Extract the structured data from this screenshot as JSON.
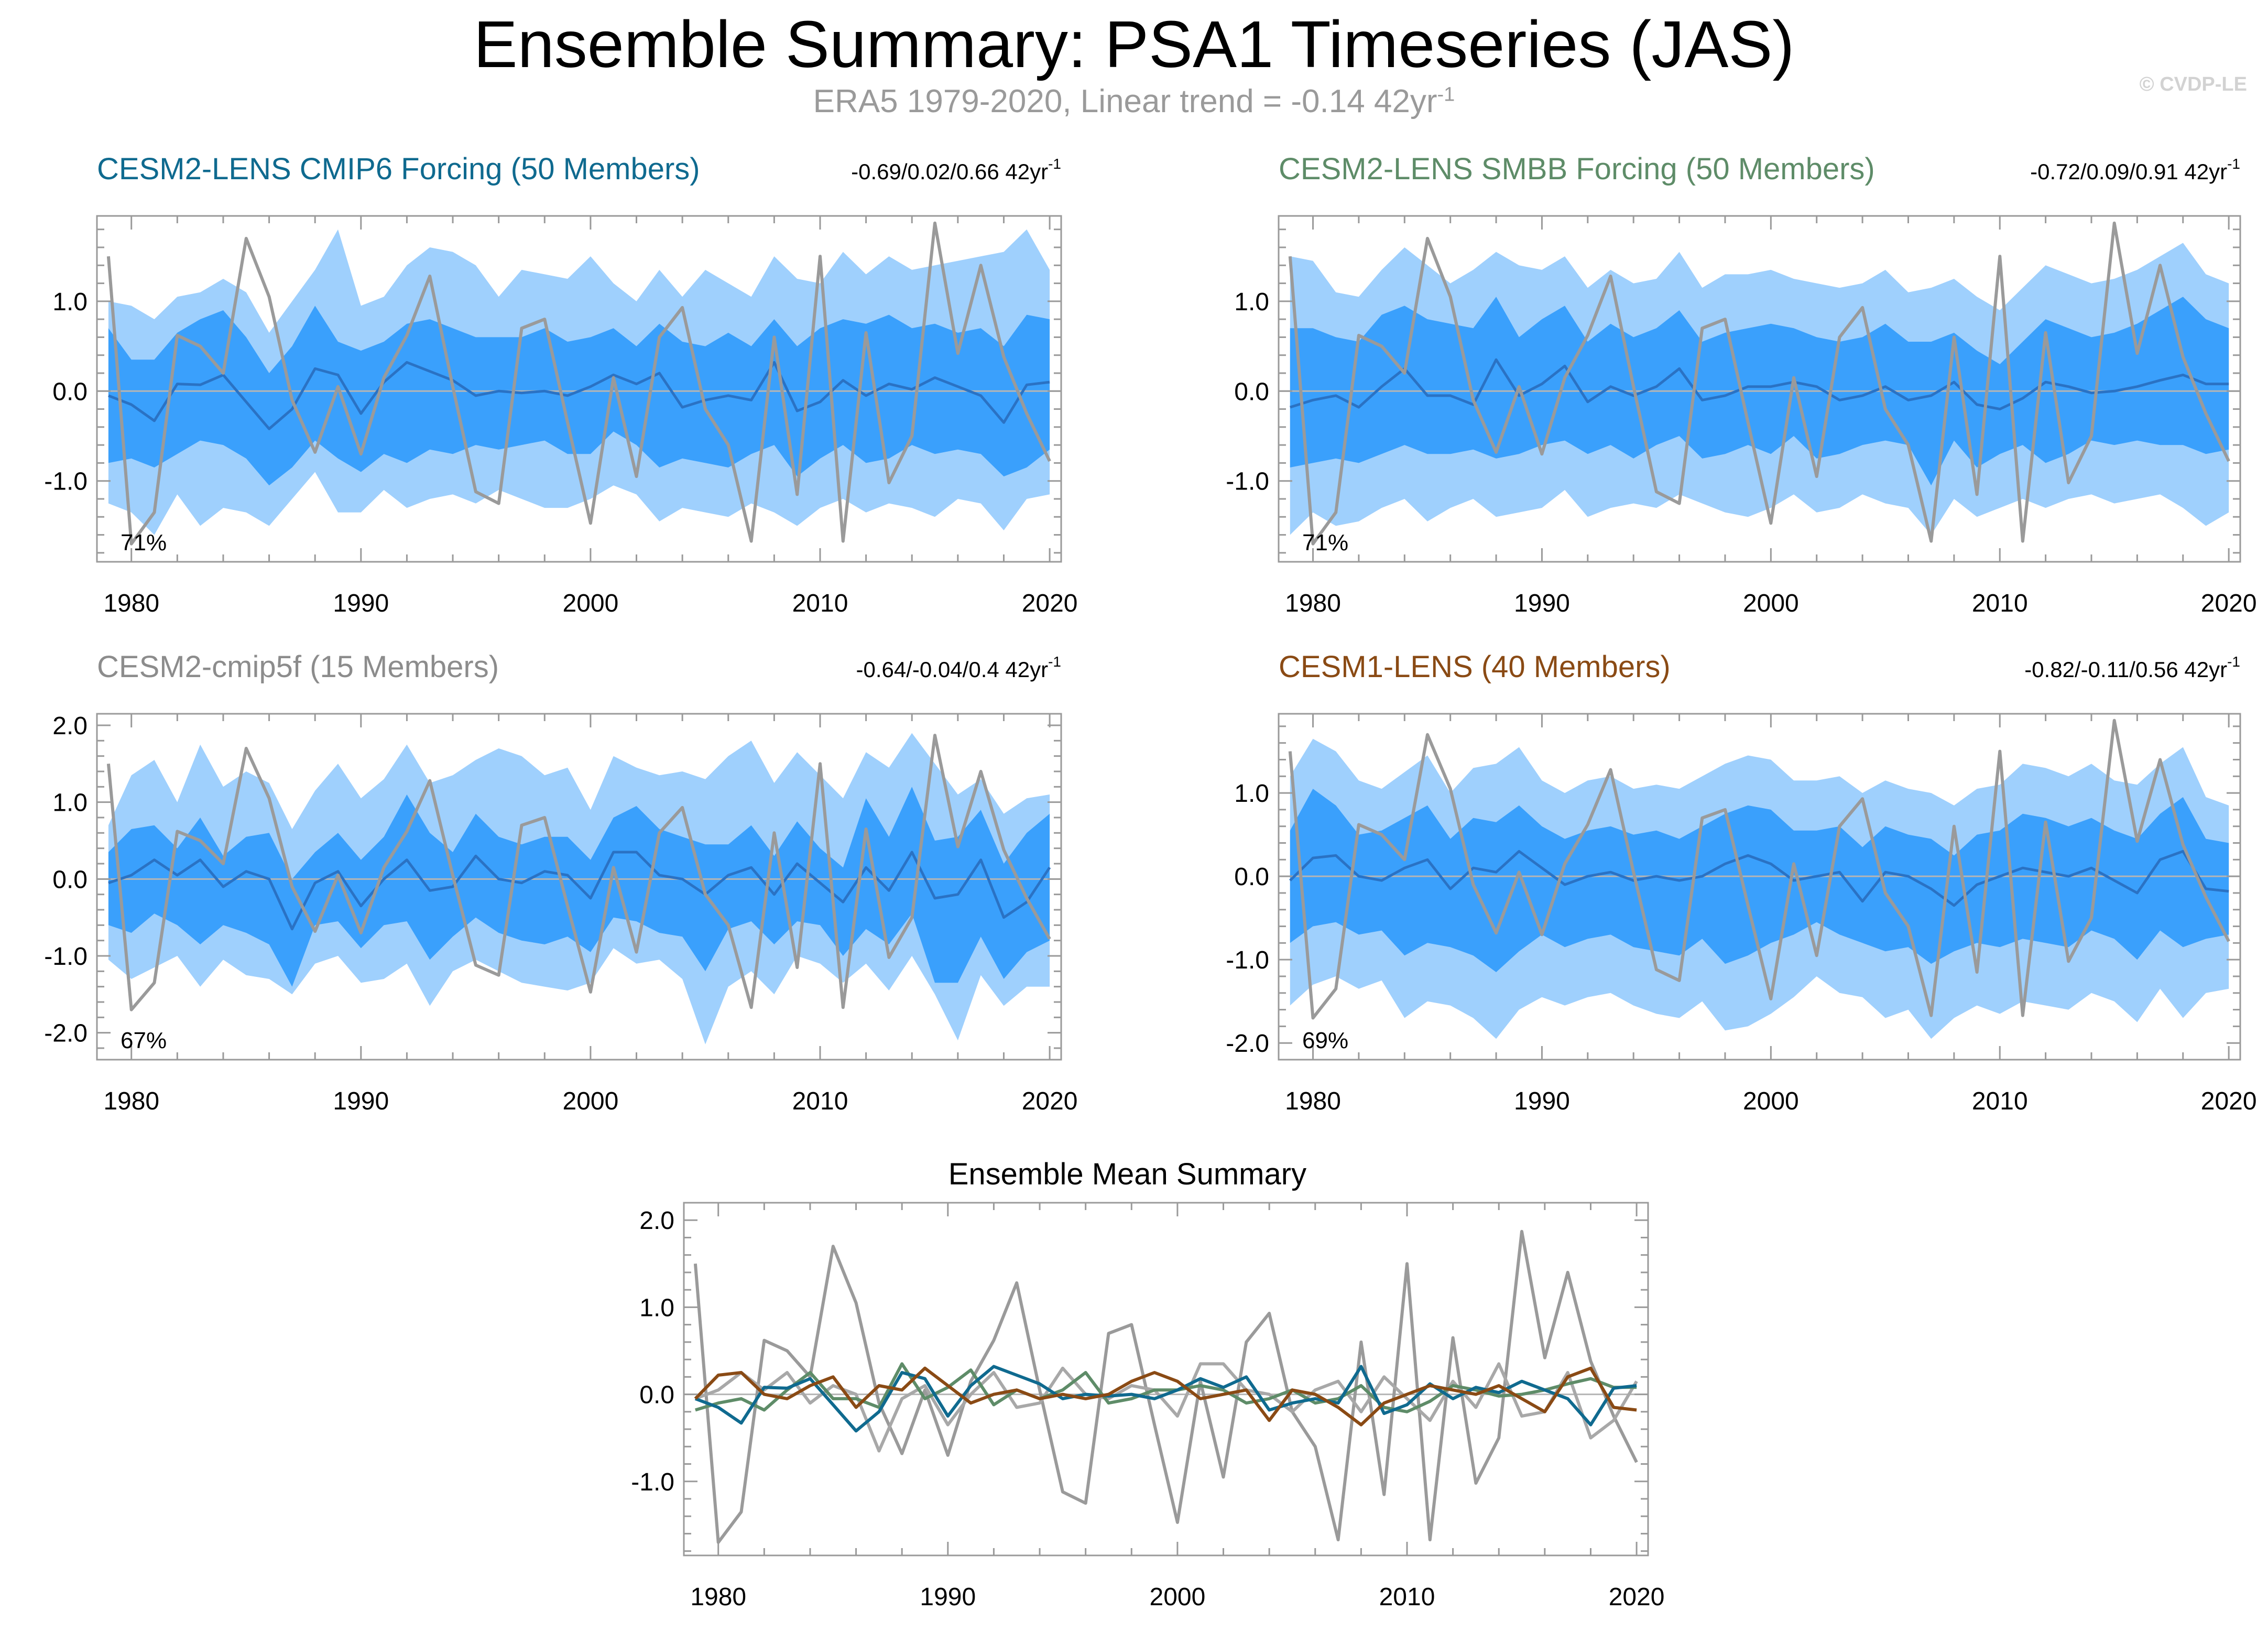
{
  "title": "Ensemble Summary: PSA1 Timeseries (JAS)",
  "subtitle": {
    "text": "ERA5 1979-2020, Linear trend = -0.14 42yr",
    "sup": "-1"
  },
  "credit": "© CVDP-LE",
  "colors": {
    "outer_band": "#9fd0fd",
    "inner_band": "#3aa0fc",
    "ens_mean": "#2a72c4",
    "obs": "#9a9a9a",
    "zero_line": "#b5b5b5"
  },
  "chart_data": [
    {
      "type": "line",
      "panel": "CESM2-LENS CMIP6 Forcing",
      "title": "CESM2-LENS CMIP6 Forcing (50 Members)",
      "title_color": "#0f6a8f",
      "trend_text": "-0.69/0.02/0.66 42yr",
      "trend_sup": "-1",
      "percent_label": "71%",
      "ylim": [
        -1.9,
        1.95
      ],
      "yticks": [
        -1.0,
        0.0,
        1.0
      ],
      "ytick_labels": [
        "-1.0",
        "0.0",
        "1.0"
      ],
      "xlim": [
        1978.5,
        2020.5
      ],
      "xticks": [
        1980,
        1990,
        2000,
        2010,
        2020
      ],
      "xtick_labels": [
        "1980",
        "1990",
        "2000",
        "2010",
        "2020"
      ],
      "ens_mean": [
        -0.05,
        -0.15,
        -0.33,
        0.08,
        0.07,
        0.18,
        -0.12,
        -0.42,
        -0.2,
        0.25,
        0.18,
        -0.25,
        0.1,
        0.32,
        0.22,
        0.12,
        -0.05,
        0.0,
        -0.02,
        0.0,
        -0.05,
        0.05,
        0.18,
        0.08,
        0.2,
        -0.18,
        -0.1,
        -0.05,
        -0.1,
        0.32,
        -0.22,
        -0.12,
        0.12,
        -0.05,
        0.08,
        0.02,
        0.15,
        0.05,
        -0.05,
        -0.35,
        0.07,
        0.1
      ],
      "lo90": [
        -1.25,
        -1.35,
        -1.6,
        -1.15,
        -1.5,
        -1.3,
        -1.35,
        -1.5,
        -1.2,
        -0.9,
        -1.35,
        -1.35,
        -1.1,
        -1.3,
        -1.2,
        -1.15,
        -1.25,
        -1.1,
        -1.2,
        -1.3,
        -1.3,
        -1.2,
        -1.05,
        -1.15,
        -1.45,
        -1.3,
        -1.35,
        -1.4,
        -1.25,
        -1.35,
        -1.5,
        -1.3,
        -1.2,
        -1.35,
        -1.25,
        -1.3,
        -1.4,
        -1.2,
        -1.25,
        -1.55,
        -1.2,
        -1.15
      ],
      "lo66": [
        -0.8,
        -0.75,
        -0.85,
        -0.7,
        -0.55,
        -0.6,
        -0.75,
        -1.05,
        -0.85,
        -0.55,
        -0.75,
        -0.9,
        -0.7,
        -0.8,
        -0.65,
        -0.7,
        -0.6,
        -0.65,
        -0.6,
        -0.55,
        -0.7,
        -0.7,
        -0.45,
        -0.6,
        -0.85,
        -0.75,
        -0.8,
        -0.85,
        -0.7,
        -0.6,
        -0.95,
        -0.75,
        -0.6,
        -0.8,
        -0.75,
        -0.6,
        -0.7,
        -0.65,
        -0.7,
        -0.95,
        -0.85,
        -0.65
      ],
      "hi66": [
        0.7,
        0.35,
        0.35,
        0.65,
        0.8,
        0.9,
        0.6,
        0.2,
        0.5,
        0.95,
        0.55,
        0.45,
        0.55,
        0.75,
        0.8,
        0.7,
        0.6,
        0.6,
        0.6,
        0.7,
        0.55,
        0.6,
        0.7,
        0.5,
        0.75,
        0.55,
        0.5,
        0.65,
        0.5,
        0.8,
        0.5,
        0.7,
        0.8,
        0.75,
        0.85,
        0.7,
        0.75,
        0.65,
        0.7,
        0.5,
        0.85,
        0.8
      ],
      "hi90": [
        1.0,
        0.95,
        0.8,
        1.05,
        1.1,
        1.25,
        1.1,
        0.65,
        1.0,
        1.35,
        1.8,
        0.95,
        1.05,
        1.4,
        1.6,
        1.55,
        1.4,
        1.05,
        1.35,
        1.3,
        1.25,
        1.5,
        1.2,
        1.0,
        1.35,
        1.05,
        1.35,
        1.2,
        1.05,
        1.5,
        1.25,
        1.2,
        1.55,
        1.3,
        1.5,
        1.35,
        1.4,
        1.45,
        1.5,
        1.55,
        1.8,
        1.35
      ]
    },
    {
      "type": "line",
      "panel": "CESM2-LENS SMBB Forcing",
      "title": "CESM2-LENS SMBB Forcing (50 Members)",
      "title_color": "#5e8c68",
      "trend_text": "-0.72/0.09/0.91 42yr",
      "trend_sup": "-1",
      "percent_label": "71%",
      "ylim": [
        -1.9,
        1.95
      ],
      "yticks": [
        -1.0,
        0.0,
        1.0
      ],
      "ytick_labels": [
        "-1.0",
        "0.0",
        "1.0"
      ],
      "xlim": [
        1978.5,
        2020.5
      ],
      "xticks": [
        1980,
        1990,
        2000,
        2010,
        2020
      ],
      "xtick_labels": [
        "1980",
        "1990",
        "2000",
        "2010",
        "2020"
      ],
      "ens_mean": [
        -0.18,
        -0.1,
        -0.05,
        -0.18,
        0.05,
        0.25,
        -0.05,
        -0.05,
        -0.15,
        0.35,
        -0.05,
        0.08,
        0.28,
        -0.12,
        0.05,
        -0.05,
        0.05,
        0.25,
        -0.1,
        -0.05,
        0.05,
        0.05,
        0.1,
        0.05,
        -0.1,
        -0.05,
        0.05,
        -0.1,
        -0.05,
        0.1,
        -0.15,
        -0.2,
        -0.08,
        0.1,
        0.05,
        -0.02,
        0.0,
        0.05,
        0.12,
        0.18,
        0.08,
        0.08
      ],
      "lo90": [
        -1.6,
        -1.35,
        -1.5,
        -1.45,
        -1.3,
        -1.2,
        -1.45,
        -1.3,
        -1.2,
        -1.4,
        -1.35,
        -1.3,
        -1.1,
        -1.4,
        -1.3,
        -1.25,
        -1.3,
        -1.15,
        -1.25,
        -1.35,
        -1.4,
        -1.3,
        -1.15,
        -1.35,
        -1.3,
        -1.15,
        -1.25,
        -1.3,
        -1.6,
        -1.2,
        -1.4,
        -1.3,
        -1.2,
        -1.3,
        -1.2,
        -1.15,
        -1.25,
        -1.2,
        -1.15,
        -1.3,
        -1.5,
        -1.35
      ],
      "lo66": [
        -0.85,
        -0.8,
        -0.75,
        -0.8,
        -0.7,
        -0.6,
        -0.7,
        -0.7,
        -0.65,
        -0.75,
        -0.7,
        -0.6,
        -0.55,
        -0.7,
        -0.6,
        -0.75,
        -0.6,
        -0.5,
        -0.75,
        -0.7,
        -0.6,
        -0.7,
        -0.5,
        -0.75,
        -0.7,
        -0.6,
        -0.55,
        -0.6,
        -1.05,
        -0.55,
        -0.85,
        -0.7,
        -0.6,
        -0.8,
        -0.7,
        -0.55,
        -0.6,
        -0.55,
        -0.6,
        -0.6,
        -0.7,
        -0.65
      ],
      "hi66": [
        0.7,
        0.7,
        0.6,
        0.55,
        0.85,
        0.95,
        0.8,
        0.75,
        0.7,
        1.05,
        0.6,
        0.8,
        0.95,
        0.55,
        0.75,
        0.6,
        0.7,
        0.9,
        0.55,
        0.65,
        0.7,
        0.75,
        0.7,
        0.6,
        0.55,
        0.6,
        0.75,
        0.55,
        0.55,
        0.65,
        0.45,
        0.3,
        0.55,
        0.8,
        0.7,
        0.6,
        0.65,
        0.75,
        0.9,
        1.05,
        0.8,
        0.7
      ],
      "hi90": [
        1.5,
        1.45,
        1.1,
        1.05,
        1.35,
        1.6,
        1.4,
        1.2,
        1.35,
        1.55,
        1.4,
        1.35,
        1.5,
        1.15,
        1.35,
        1.2,
        1.25,
        1.55,
        1.15,
        1.3,
        1.3,
        1.35,
        1.25,
        1.2,
        1.15,
        1.2,
        1.35,
        1.1,
        1.15,
        1.25,
        1.05,
        0.9,
        1.15,
        1.4,
        1.3,
        1.2,
        1.25,
        1.35,
        1.5,
        1.65,
        1.3,
        1.2
      ]
    },
    {
      "type": "line",
      "panel": "CESM2-cmip5f",
      "title": "CESM2-cmip5f (15 Members)",
      "title_color": "#8c8c8c",
      "trend_text": "-0.64/-0.04/0.4 42yr",
      "trend_sup": "-1",
      "percent_label": "67%",
      "ylim": [
        -2.35,
        2.15
      ],
      "yticks": [
        -2.0,
        -1.0,
        0.0,
        1.0,
        2.0
      ],
      "ytick_labels": [
        "-2.0",
        "-1.0",
        "0.0",
        "1.0",
        "2.0"
      ],
      "xlim": [
        1978.5,
        2020.5
      ],
      "xticks": [
        1980,
        1990,
        2000,
        2010,
        2020
      ],
      "xtick_labels": [
        "1980",
        "1990",
        "2000",
        "2010",
        "2020"
      ],
      "ens_mean": [
        -0.05,
        0.05,
        0.25,
        0.05,
        0.25,
        -0.1,
        0.1,
        0.0,
        -0.65,
        -0.05,
        0.1,
        -0.35,
        0.0,
        0.25,
        -0.15,
        -0.1,
        0.3,
        0.0,
        -0.05,
        0.1,
        0.05,
        -0.25,
        0.35,
        0.35,
        0.05,
        0.0,
        -0.2,
        0.05,
        0.15,
        -0.2,
        0.2,
        -0.05,
        -0.3,
        0.15,
        -0.15,
        0.35,
        -0.25,
        -0.2,
        0.25,
        -0.5,
        -0.3,
        0.15
      ],
      "lo90": [
        -1.05,
        -1.3,
        -1.15,
        -1.0,
        -1.4,
        -1.05,
        -1.25,
        -1.3,
        -1.5,
        -1.1,
        -1.0,
        -1.35,
        -1.3,
        -1.1,
        -1.65,
        -1.2,
        -1.05,
        -1.2,
        -1.35,
        -1.4,
        -1.45,
        -1.35,
        -0.9,
        -1.1,
        -1.05,
        -1.3,
        -2.15,
        -1.4,
        -1.2,
        -1.5,
        -1.0,
        -1.1,
        -1.35,
        -1.1,
        -1.45,
        -1.0,
        -1.5,
        -2.1,
        -1.25,
        -1.65,
        -1.4,
        -1.4
      ],
      "lo66": [
        -0.6,
        -0.7,
        -0.45,
        -0.6,
        -0.85,
        -0.6,
        -0.7,
        -0.85,
        -1.4,
        -0.6,
        -0.55,
        -0.9,
        -0.6,
        -0.55,
        -1.05,
        -0.75,
        -0.5,
        -0.7,
        -0.8,
        -0.85,
        -0.75,
        -0.95,
        -0.5,
        -0.55,
        -0.7,
        -0.75,
        -1.2,
        -0.65,
        -0.55,
        -0.85,
        -0.55,
        -0.6,
        -1.0,
        -0.65,
        -0.85,
        -0.45,
        -1.35,
        -1.35,
        -0.75,
        -1.3,
        -0.95,
        -0.8
      ],
      "hi66": [
        0.35,
        0.65,
        0.7,
        0.4,
        0.8,
        0.3,
        0.55,
        0.6,
        0.0,
        0.35,
        0.6,
        0.25,
        0.55,
        1.1,
        0.6,
        0.35,
        0.85,
        0.55,
        0.45,
        0.55,
        0.55,
        0.25,
        0.8,
        0.95,
        0.65,
        0.55,
        0.45,
        0.45,
        0.7,
        0.3,
        0.75,
        0.4,
        0.15,
        1.05,
        0.55,
        1.2,
        0.5,
        0.55,
        0.9,
        0.2,
        0.6,
        0.85
      ],
      "hi90": [
        0.7,
        1.35,
        1.55,
        1.0,
        1.75,
        1.2,
        1.4,
        1.25,
        0.65,
        1.15,
        1.5,
        1.05,
        1.3,
        1.75,
        1.25,
        1.35,
        1.55,
        1.7,
        1.6,
        1.35,
        1.45,
        0.9,
        1.6,
        1.45,
        1.35,
        1.4,
        1.3,
        1.6,
        1.8,
        1.25,
        1.65,
        1.35,
        1.05,
        1.65,
        1.45,
        1.9,
        1.5,
        1.1,
        1.3,
        0.85,
        1.05,
        1.1
      ]
    },
    {
      "type": "line",
      "panel": "CESM1-LENS",
      "title": "CESM1-LENS (40 Members)",
      "title_color": "#8a4a14",
      "trend_text": "-0.82/-0.11/0.56 42yr",
      "trend_sup": "-1",
      "percent_label": "69%",
      "ylim": [
        -2.2,
        1.95
      ],
      "yticks": [
        -2.0,
        -1.0,
        0.0,
        1.0
      ],
      "ytick_labels": [
        "-2.0",
        "-1.0",
        "0.0",
        "1.0"
      ],
      "xlim": [
        1978.5,
        2020.5
      ],
      "xticks": [
        1980,
        1990,
        2000,
        2010,
        2020
      ],
      "xtick_labels": [
        "1980",
        "1990",
        "2000",
        "2010",
        "2020"
      ],
      "ens_mean": [
        -0.05,
        0.22,
        0.25,
        0.0,
        -0.05,
        0.1,
        0.2,
        -0.15,
        0.1,
        0.05,
        0.3,
        0.1,
        -0.1,
        0.0,
        0.05,
        -0.05,
        0.0,
        -0.05,
        0.0,
        0.15,
        0.25,
        0.15,
        -0.05,
        0.0,
        0.05,
        -0.3,
        0.05,
        0.0,
        -0.15,
        -0.35,
        -0.1,
        0.0,
        0.1,
        0.05,
        0.0,
        0.1,
        -0.05,
        -0.2,
        0.2,
        0.3,
        -0.15,
        -0.18
      ],
      "lo90": [
        -1.55,
        -1.3,
        -1.2,
        -1.35,
        -1.25,
        -1.7,
        -1.5,
        -1.55,
        -1.7,
        -1.95,
        -1.6,
        -1.45,
        -1.55,
        -1.45,
        -1.4,
        -1.55,
        -1.65,
        -1.7,
        -1.5,
        -1.85,
        -1.8,
        -1.65,
        -1.45,
        -1.2,
        -1.4,
        -1.45,
        -1.7,
        -1.6,
        -1.95,
        -1.7,
        -1.55,
        -1.65,
        -1.5,
        -1.55,
        -1.6,
        -1.4,
        -1.5,
        -1.75,
        -1.35,
        -1.7,
        -1.4,
        -1.35
      ],
      "lo66": [
        -0.8,
        -0.6,
        -0.55,
        -0.7,
        -0.65,
        -0.95,
        -0.8,
        -0.85,
        -0.95,
        -1.15,
        -0.9,
        -0.7,
        -0.85,
        -0.75,
        -0.7,
        -0.85,
        -0.9,
        -0.95,
        -0.75,
        -1.05,
        -0.95,
        -0.8,
        -0.7,
        -0.55,
        -0.7,
        -0.8,
        -0.9,
        -0.85,
        -1.05,
        -0.9,
        -0.8,
        -0.85,
        -0.75,
        -0.8,
        -0.85,
        -0.65,
        -0.75,
        -1.0,
        -0.65,
        -0.85,
        -0.75,
        -0.7
      ],
      "hi66": [
        0.55,
        1.05,
        0.85,
        0.5,
        0.55,
        0.7,
        0.85,
        0.45,
        0.7,
        0.65,
        0.85,
        0.6,
        0.45,
        0.55,
        0.6,
        0.5,
        0.55,
        0.45,
        0.6,
        0.75,
        0.85,
        0.8,
        0.55,
        0.55,
        0.6,
        0.35,
        0.6,
        0.5,
        0.45,
        0.25,
        0.5,
        0.55,
        0.75,
        0.7,
        0.6,
        0.7,
        0.55,
        0.45,
        0.75,
        0.95,
        0.45,
        0.4
      ],
      "hi90": [
        1.2,
        1.65,
        1.5,
        1.15,
        1.05,
        1.25,
        1.45,
        1.0,
        1.3,
        1.35,
        1.55,
        1.15,
        1.0,
        1.15,
        1.2,
        1.05,
        1.1,
        1.05,
        1.2,
        1.35,
        1.45,
        1.4,
        1.15,
        1.15,
        1.2,
        1.0,
        1.15,
        1.05,
        1.0,
        0.85,
        1.05,
        1.1,
        1.35,
        1.3,
        1.2,
        1.35,
        1.15,
        1.1,
        1.35,
        1.55,
        0.95,
        0.85
      ]
    },
    {
      "type": "line",
      "panel": "Ensemble Mean Summary",
      "title": "Ensemble Mean Summary",
      "title_color": "#000000",
      "ylim": [
        -1.85,
        2.2
      ],
      "yticks": [
        -1.0,
        0.0,
        1.0,
        2.0
      ],
      "ytick_labels": [
        "-1.0",
        "0.0",
        "1.0",
        "2.0"
      ],
      "xlim": [
        1978.5,
        2020.5
      ],
      "xticks": [
        1980,
        1990,
        2000,
        2010,
        2020
      ],
      "xtick_labels": [
        "1980",
        "1990",
        "2000",
        "2010",
        "2020"
      ],
      "series": [
        {
          "name": "CESM2-LENS CMIP6 Forcing",
          "color": "#0f6a8f"
        },
        {
          "name": "CESM2-LENS SMBB Forcing",
          "color": "#5e8c68"
        },
        {
          "name": "CESM2-cmip5f",
          "color": "#a8a8a8"
        },
        {
          "name": "CESM1-LENS",
          "color": "#8a4a14"
        }
      ]
    }
  ],
  "obs": {
    "name": "ERA5",
    "years": [
      1979,
      2020
    ],
    "values": [
      1.5,
      -1.7,
      -1.35,
      0.62,
      0.5,
      0.2,
      1.7,
      1.05,
      -0.1,
      -0.68,
      0.05,
      -0.7,
      0.15,
      0.62,
      1.28,
      0.05,
      -1.12,
      -1.25,
      0.7,
      0.8,
      -0.35,
      -1.47,
      0.15,
      -0.95,
      0.6,
      0.93,
      -0.2,
      -0.6,
      -1.67,
      0.6,
      -1.15,
      1.5,
      -1.67,
      0.65,
      -1.02,
      -0.5,
      1.87,
      0.42,
      1.4,
      0.38,
      -0.25,
      -0.78
    ]
  }
}
